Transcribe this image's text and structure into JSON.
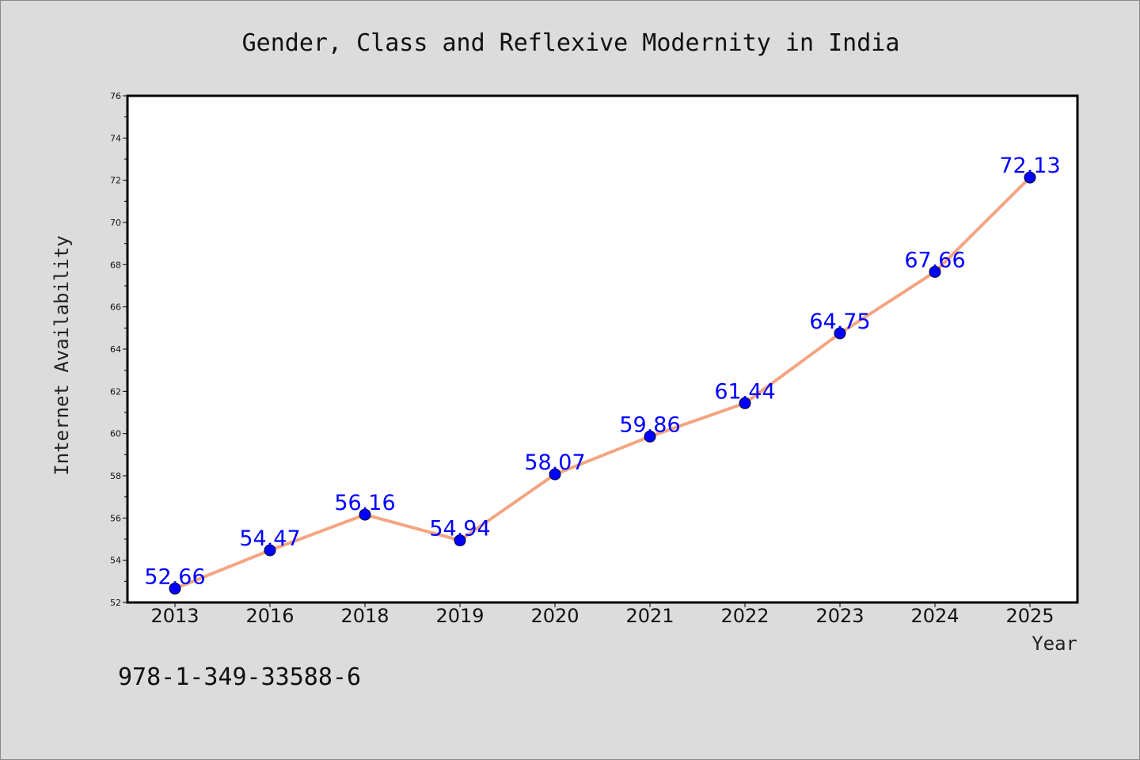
{
  "chart_data": {
    "type": "line",
    "title": "Gender, Class and Reflexive Modernity in India",
    "xlabel": "Year",
    "ylabel": "Internet Availability",
    "categories": [
      "2013",
      "2016",
      "2018",
      "2019",
      "2020",
      "2021",
      "2022",
      "2023",
      "2024",
      "2025"
    ],
    "series": [
      {
        "values": [
          52.66,
          54.47,
          56.16,
          54.94,
          58.07,
          59.86,
          61.44,
          64.75,
          67.66,
          72.13
        ]
      }
    ],
    "data_labels": [
      "52.66",
      "54.47",
      "56.16",
      "54.94",
      "58.07",
      "59.86",
      "61.44",
      "64.75",
      "67.66",
      "72.13"
    ],
    "ylim": [
      52,
      76
    ],
    "yticks": [
      "52",
      "54",
      "56",
      "58",
      "60",
      "62",
      "64",
      "66",
      "68",
      "70",
      "72",
      "74",
      "76"
    ],
    "grid": false,
    "legend": "none",
    "line_color": "#f4a582",
    "marker_color": "#0000ff",
    "label_color": "#0000ff",
    "background_color": "#dcdcdc",
    "plot_background_color": "#ffffff"
  },
  "annotation": {
    "text": "978-1-349-33588-6"
  }
}
